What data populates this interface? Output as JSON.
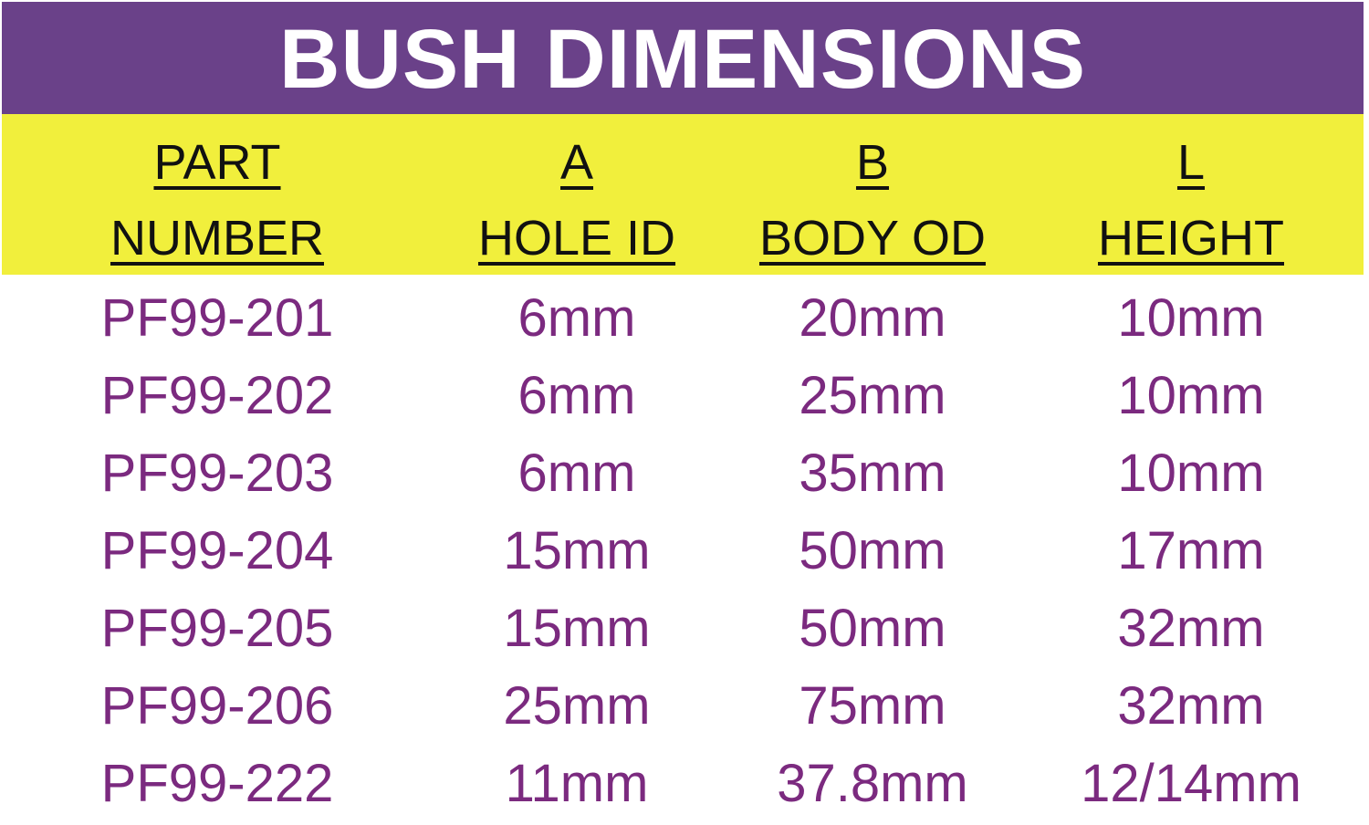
{
  "title": "BUSH DIMENSIONS",
  "colors": {
    "title_bg": "#6a4189",
    "header_bg": "#f1ef3c",
    "value_text": "#7b2a7f"
  },
  "headers": [
    {
      "line1": "PART",
      "line2": "NUMBER"
    },
    {
      "line1": "A",
      "line2": "HOLE ID"
    },
    {
      "line1": "B",
      "line2": "BODY OD"
    },
    {
      "line1": "L",
      "line2": "HEIGHT"
    }
  ],
  "rows": [
    [
      "PF99-201",
      "6mm",
      "20mm",
      "10mm"
    ],
    [
      "PF99-202",
      "6mm",
      "25mm",
      "10mm"
    ],
    [
      "PF99-203",
      "6mm",
      "35mm",
      "10mm"
    ],
    [
      "PF99-204",
      "15mm",
      "50mm",
      "17mm"
    ],
    [
      "PF99-205",
      "15mm",
      "50mm",
      "32mm"
    ],
    [
      "PF99-206",
      "25mm",
      "75mm",
      "32mm"
    ],
    [
      "PF99-222",
      "11mm",
      "37.8mm",
      "12/14mm"
    ]
  ]
}
